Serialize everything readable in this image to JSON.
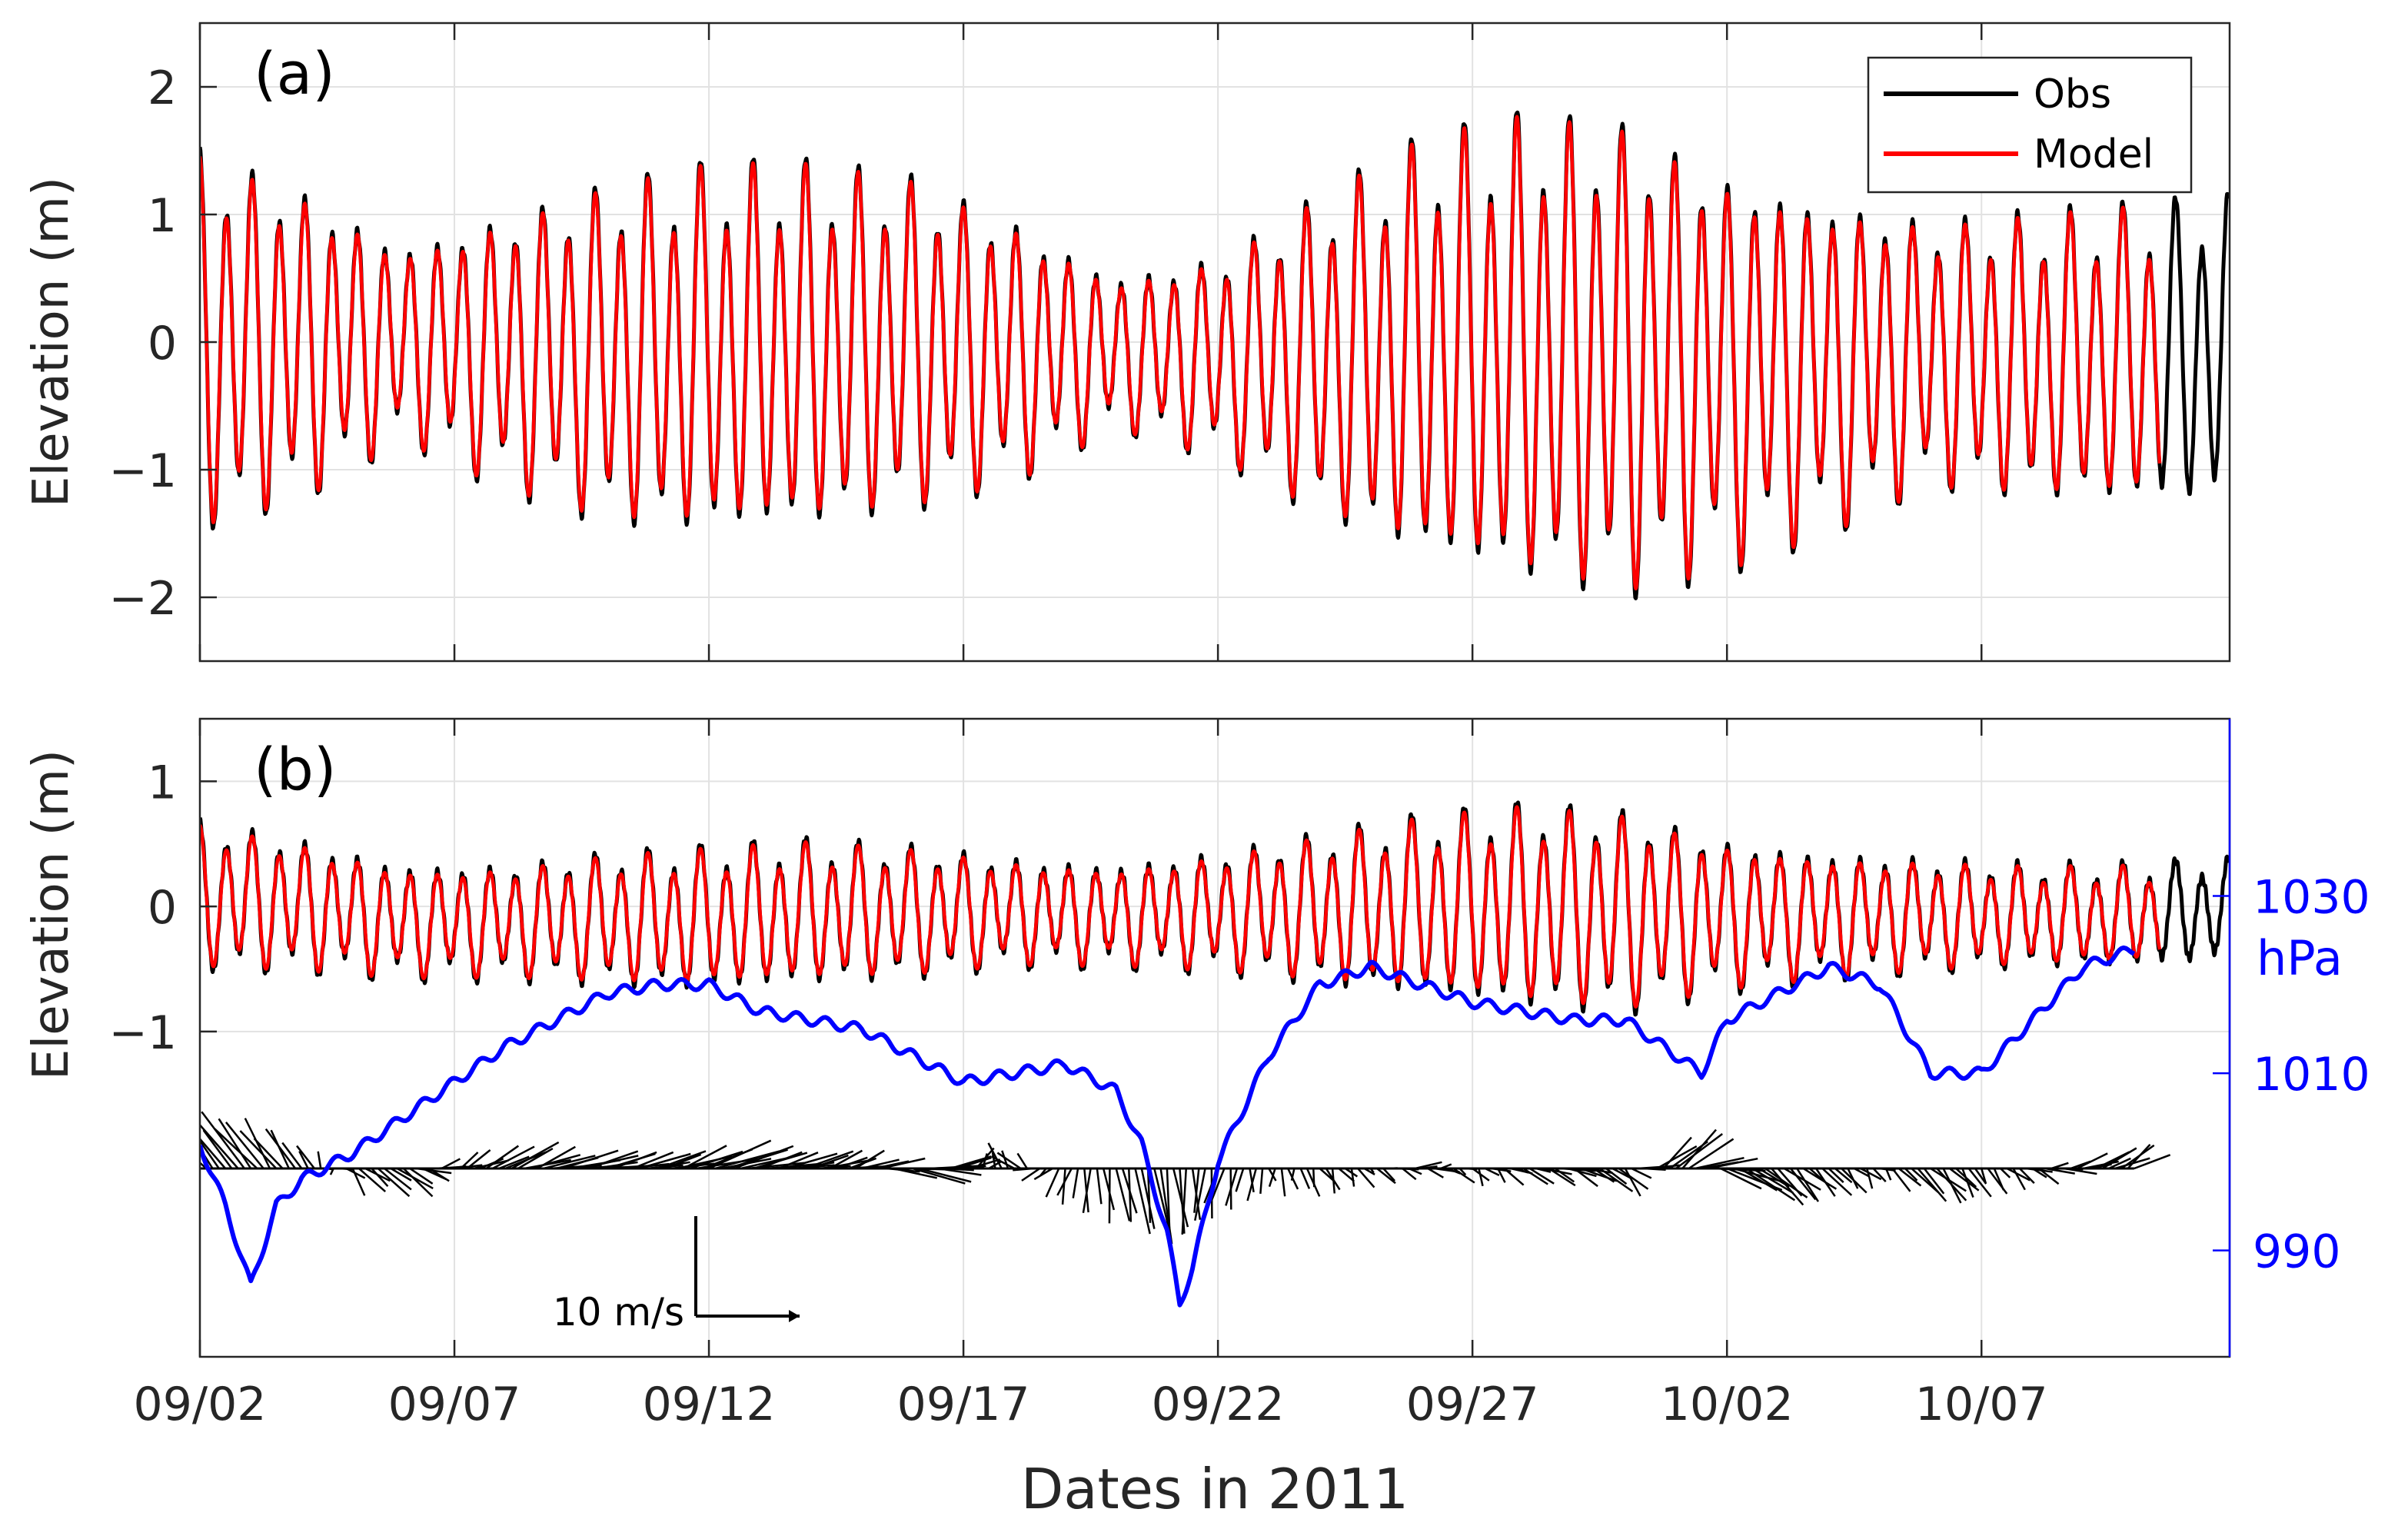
{
  "figure": {
    "xlabel": "Dates in 2011",
    "x_tick_labels": [
      "09/02",
      "09/07",
      "09/12",
      "09/17",
      "09/22",
      "09/27",
      "10/02",
      "10/07"
    ],
    "colors": {
      "obs": "#000000",
      "model": "#ff0000",
      "pressure": "#0000ff",
      "wind": "#000000",
      "grid": "#e2e2e2",
      "axis": "#262626"
    }
  },
  "chart_data": [
    {
      "type": "line",
      "panel_label": "(a)",
      "ylabel": "Elevation (m)",
      "ylim": [
        -2.5,
        2.5
      ],
      "y_ticks": [
        -2,
        -1,
        0,
        1,
        2
      ],
      "y_tick_labels": [
        "−2",
        "−1",
        "0",
        "1",
        "2"
      ],
      "xlim": [
        "2011-09-02",
        "2011-10-11T21:00"
      ],
      "grid": true,
      "legend": {
        "placement": "top-right",
        "entries": [
          "Obs",
          "Model"
        ]
      },
      "series": [
        {
          "name": "Obs",
          "kind": "tidal elevation",
          "start": "2011-09-02",
          "end": "2011-10-11T21:00",
          "semidiurnal_period_hours": 12.42,
          "diurnal_period_hours": 23.93,
          "envelope_dates": [
            "09/02",
            "09/04",
            "09/06",
            "09/08",
            "09/10",
            "09/12",
            "09/14",
            "09/16",
            "09/18",
            "09/20",
            "09/22",
            "09/24",
            "09/26",
            "09/28",
            "09/30",
            "10/02",
            "10/04",
            "10/06",
            "10/08",
            "10/10",
            "10/12"
          ],
          "envelope_high": [
            1.55,
            1.25,
            0.8,
            1.05,
            1.3,
            1.45,
            1.45,
            1.35,
            1.0,
            0.55,
            0.7,
            1.2,
            1.65,
            1.85,
            1.8,
            1.4,
            1.2,
            1.0,
            1.05,
            1.1,
            1.2
          ],
          "envelope_low": [
            -1.6,
            -1.3,
            -0.8,
            -1.2,
            -1.5,
            -1.6,
            -1.55,
            -1.4,
            -1.15,
            -0.7,
            -0.95,
            -1.45,
            -1.8,
            -2.0,
            -2.1,
            -1.85,
            -1.55,
            -1.2,
            -1.3,
            -1.35,
            -1.35
          ]
        },
        {
          "name": "Model",
          "kind": "tidal elevation",
          "start": "2011-09-02",
          "end": "2011-10-10T12:00",
          "follows": "Obs",
          "amplitude_scale": 0.97
        }
      ]
    },
    {
      "type": "line",
      "panel_label": "(b)",
      "ylabel": "Elevation (m)",
      "ylim": [
        -3.6,
        1.5
      ],
      "y_ticks": [
        -1,
        0,
        1
      ],
      "y_tick_labels": [
        "−1",
        "0",
        "1"
      ],
      "xlim": [
        "2011-09-02",
        "2011-10-11T21:00"
      ],
      "grid": true,
      "series": [
        {
          "name": "Obs",
          "kind": "tidal elevation",
          "start": "2011-09-02",
          "end": "2011-10-11T21:00",
          "semidiurnal_period_hours": 12.42,
          "envelope_dates": [
            "09/02",
            "09/04",
            "09/06",
            "09/08",
            "09/10",
            "09/12",
            "09/14",
            "09/16",
            "09/18",
            "09/20",
            "09/22",
            "09/24",
            "09/26",
            "09/28",
            "09/30",
            "10/02",
            "10/04",
            "10/06",
            "10/08",
            "10/10",
            "10/12"
          ],
          "envelope_high": [
            0.7,
            0.55,
            0.35,
            0.35,
            0.45,
            0.5,
            0.55,
            0.5,
            0.4,
            0.35,
            0.45,
            0.6,
            0.75,
            0.85,
            0.8,
            0.55,
            0.45,
            0.4,
            0.35,
            0.35,
            0.4
          ],
          "envelope_low": [
            -0.55,
            -0.55,
            -0.6,
            -0.6,
            -0.65,
            -0.7,
            -0.65,
            -0.6,
            -0.5,
            -0.5,
            -0.55,
            -0.65,
            -0.75,
            -0.85,
            -0.9,
            -0.7,
            -0.6,
            -0.55,
            -0.5,
            -0.5,
            -0.45
          ]
        },
        {
          "name": "Model",
          "kind": "tidal elevation",
          "start": "2011-09-02",
          "end": "2011-10-10T12:00",
          "follows": "Obs",
          "amplitude_scale": 0.95
        }
      ],
      "pressure": {
        "unit_label": "hPa",
        "right_axis_ticks": [
          990,
          1010,
          1030
        ],
        "right_axis_range": [
          978,
          1050
        ],
        "dates": [
          "09/02",
          "09/02 12:00",
          "09/03",
          "09/03 12:00",
          "09/04",
          "09/05",
          "09/06",
          "09/07",
          "09/08",
          "09/09",
          "09/10",
          "09/11",
          "09/12",
          "09/13",
          "09/14",
          "09/15",
          "09/16",
          "09/17",
          "09/18",
          "09/19",
          "09/20",
          "09/20 12:00",
          "09/21",
          "09/21 06:00",
          "09/21 12:00",
          "09/22",
          "09/23",
          "09/24",
          "09/25",
          "09/26",
          "09/27",
          "09/28",
          "09/29",
          "09/30",
          "10/01",
          "10/01 12:00",
          "10/02",
          "10/03",
          "10/04",
          "10/05",
          "10/06",
          "10/07",
          "10/08",
          "10/09",
          "10/10"
        ],
        "values": [
          1002,
          995,
          986,
          995,
          998,
          1001,
          1005,
          1009,
          1013,
          1016,
          1019,
          1020,
          1020,
          1017,
          1016,
          1015,
          1012,
          1009,
          1010,
          1011,
          1008,
          1002,
          992,
          984,
          988,
          1000,
          1012,
          1020,
          1022,
          1020,
          1018,
          1017,
          1016,
          1016,
          1012,
          1010,
          1016,
          1019,
          1022,
          1020,
          1010,
          1010,
          1016,
          1022,
          1024
        ]
      },
      "wind_scale": {
        "label": "10 m/s",
        "speed_ms": 10
      },
      "wind": {
        "note": "stick vectors from a zero line",
        "dates": [
          "09/02",
          "09/03",
          "09/04",
          "09/05",
          "09/06",
          "09/07",
          "09/08",
          "09/09",
          "09/10",
          "09/11",
          "09/12",
          "09/13",
          "09/14",
          "09/15",
          "09/16",
          "09/17",
          "09/18",
          "09/19",
          "09/20",
          "09/21",
          "09/22",
          "09/23",
          "09/24",
          "09/25",
          "09/26",
          "09/27",
          "09/28",
          "09/29",
          "09/30",
          "10/01",
          "10/02",
          "10/03",
          "10/04",
          "10/05",
          "10/06",
          "10/07",
          "10/08",
          "10/09",
          "10/10"
        ],
        "u_ms": [
          -3,
          -4,
          -2,
          2,
          3,
          2,
          4,
          5,
          5,
          4,
          6,
          5,
          4,
          3,
          5,
          3,
          -2,
          -1,
          1,
          1,
          -1,
          0,
          1,
          1,
          2,
          1,
          2,
          3,
          2,
          4,
          5,
          3,
          2,
          1,
          3,
          1,
          2,
          3,
          3
        ],
        "v_ms": [
          4,
          5,
          3,
          -2,
          -2,
          1,
          2,
          1,
          1,
          1,
          2,
          1,
          1,
          1,
          -1,
          1,
          2,
          -3,
          -5,
          -7,
          -4,
          -2,
          -2,
          -1,
          0,
          -1,
          -1,
          -1,
          -2,
          4,
          -2,
          -3,
          -2,
          -1,
          -3,
          -2,
          -1,
          1,
          2
        ]
      }
    }
  ]
}
